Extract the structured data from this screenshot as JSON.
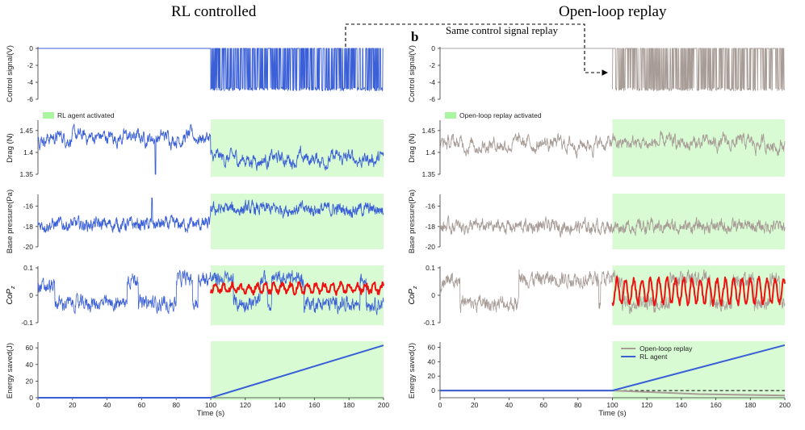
{
  "titles": {
    "left": "RL controlled",
    "right": "Open-loop replay"
  },
  "panel_label_b": "b",
  "replay_note": "Same control signal replay",
  "colors": {
    "rl": "#3a5fd6",
    "replay": "#a89c97",
    "copm": "#ee1111",
    "activated": "#d8fbd3"
  },
  "chart_data": [
    {
      "type": "line",
      "column": "left",
      "ylabel": "Control signal(V)",
      "ylim": [
        -6,
        0
      ],
      "yticks": [
        0,
        -2,
        -4,
        -6
      ],
      "xlim": [
        0,
        200
      ],
      "activation_start": 100,
      "series": [
        {
          "values_before_100": 0,
          "values_after_100_range": [
            -5,
            0
          ]
        }
      ]
    },
    {
      "type": "line",
      "column": "left",
      "ylabel": "Drag (N)",
      "ylim": [
        1.35,
        1.47
      ],
      "yticks": [
        1.45,
        1.4,
        1.35
      ],
      "xlim": [
        0,
        200
      ],
      "activation_start": 100,
      "legend": "RL agent activated",
      "series": [
        {
          "mean_before": 1.435,
          "mean_after": 1.385,
          "dip_at": [
            68,
            1.35
          ]
        }
      ]
    },
    {
      "type": "line",
      "column": "left",
      "ylabel": "Base pressure(Pa)",
      "ylim": [
        -20,
        -15
      ],
      "yticks": [
        -16,
        -18,
        -20
      ],
      "xlim": [
        0,
        200
      ],
      "activation_start": 100,
      "series": [
        {
          "mean_before": -17.8,
          "mean_after": -16.3
        }
      ]
    },
    {
      "type": "line",
      "column": "left",
      "ylabel": "CoP_z",
      "ylim": [
        -0.1,
        0.1
      ],
      "yticks": [
        0.1,
        0,
        -0.1
      ],
      "xlim": [
        0,
        200
      ],
      "activation_start": 100
    },
    {
      "type": "line",
      "column": "left",
      "ylabel": "Energy saved(J)",
      "xlabel": "Time (s)",
      "ylim": [
        0,
        65
      ],
      "yticks": [
        60,
        40,
        20,
        0
      ],
      "xlim": [
        0,
        200
      ],
      "xticks": [
        0,
        20,
        40,
        60,
        80,
        100,
        120,
        140,
        160,
        180,
        200
      ],
      "activation_start": 100,
      "series": [
        {
          "name": "RL agent",
          "x": [
            0,
            100,
            200
          ],
          "y": [
            0,
            0,
            63
          ]
        }
      ]
    },
    {
      "type": "line",
      "column": "right",
      "ylabel": "Control signal(V)",
      "ylim": [
        -6,
        0
      ],
      "yticks": [
        0,
        -2,
        -4,
        -6
      ],
      "xlim": [
        0,
        200
      ],
      "activation_start": 100
    },
    {
      "type": "line",
      "column": "right",
      "ylabel": "Drag (N)",
      "ylim": [
        1.35,
        1.47
      ],
      "yticks": [
        1.45,
        1.4,
        1.35
      ],
      "xlim": [
        0,
        200
      ],
      "activation_start": 100,
      "legend": "Open-loop replay activated",
      "series": [
        {
          "mean": 1.42
        }
      ]
    },
    {
      "type": "line",
      "column": "right",
      "ylabel": "Base pressure(Pa)",
      "ylim": [
        -20,
        -15
      ],
      "yticks": [
        -16,
        -18,
        -20
      ],
      "xlim": [
        0,
        200
      ],
      "activation_start": 100,
      "series": [
        {
          "mean": -18.0
        }
      ]
    },
    {
      "type": "line",
      "column": "right",
      "ylabel": "CoP_z",
      "ylim": [
        -0.1,
        0.1
      ],
      "yticks": [
        0.1,
        0,
        -0.1
      ],
      "xlim": [
        0,
        200
      ],
      "activation_start": 100
    },
    {
      "type": "line",
      "column": "right",
      "ylabel": "Energy saved(J)",
      "xlabel": "Time (s)",
      "ylim": [
        -10,
        65
      ],
      "yticks": [
        60,
        40,
        20,
        0
      ],
      "xlim": [
        0,
        200
      ],
      "xticks": [
        0,
        20,
        40,
        60,
        80,
        100,
        120,
        140,
        160,
        180,
        200
      ],
      "activation_start": 100,
      "series": [
        {
          "name": "Open-loop replay",
          "x": [
            0,
            100,
            150,
            200
          ],
          "y": [
            0,
            0,
            -5,
            -7
          ]
        },
        {
          "name": "RL agent",
          "x": [
            0,
            100,
            200
          ],
          "y": [
            0,
            0,
            63
          ]
        }
      ]
    }
  ]
}
